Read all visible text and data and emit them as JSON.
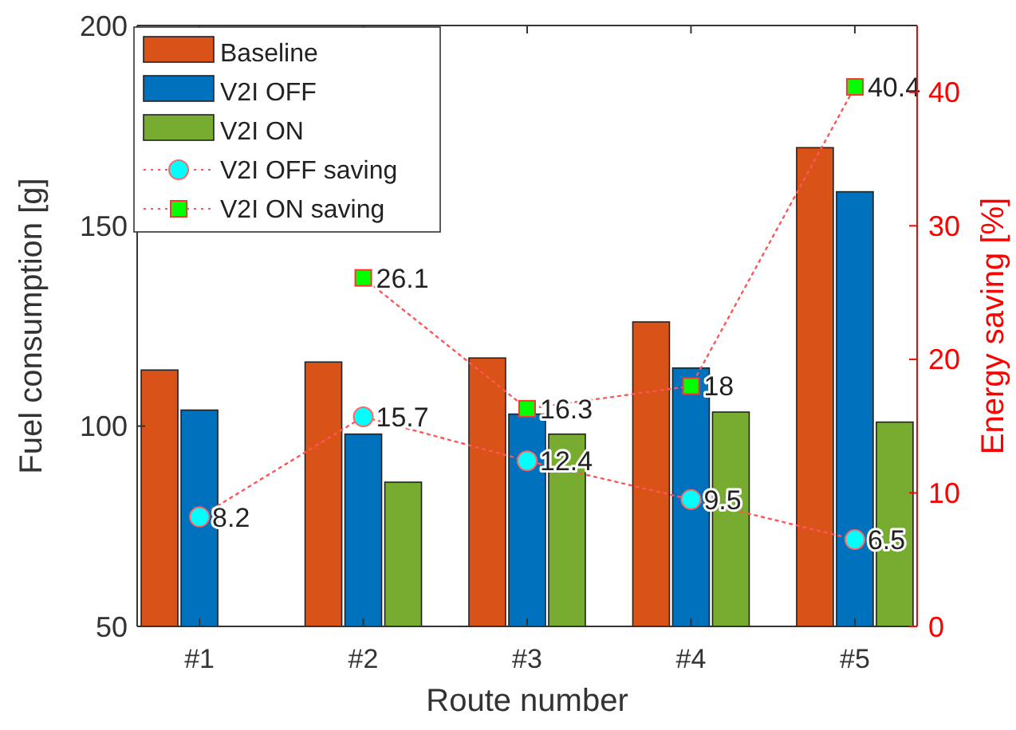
{
  "chart_data": {
    "type": "bar",
    "xlabel": "Route number",
    "ylabel": "Fuel consumption [g]",
    "y2label": "Energy saving [%]",
    "categories": [
      "#1",
      "#2",
      "#3",
      "#4",
      "#5"
    ],
    "series": [
      {
        "name": "Baseline",
        "color": "#d95319",
        "values": [
          114,
          116,
          117,
          126,
          169.5
        ]
      },
      {
        "name": "V2I OFF",
        "color": "#0072bd",
        "values": [
          104,
          98,
          103,
          114.5,
          158.5
        ]
      },
      {
        "name": "V2I ON",
        "color": "#77ac30",
        "values": [
          null,
          86,
          98,
          103.5,
          101
        ]
      },
      {
        "name": "V2I OFF saving",
        "type": "line",
        "axis": "y2",
        "color": "#00ffff",
        "marker": "circle",
        "line_style": "dotted",
        "values": [
          8.2,
          15.7,
          12.4,
          9.5,
          6.5
        ],
        "value_labels": [
          "8.2",
          "15.7",
          "12.4",
          "9.5",
          "6.5"
        ]
      },
      {
        "name": "V2I ON saving",
        "type": "line",
        "axis": "y2",
        "color": "#00ff00",
        "marker": "square",
        "line_style": "dotted",
        "values": [
          null,
          26.1,
          16.3,
          18,
          40.4
        ],
        "value_labels": [
          null,
          "26.1",
          "16.3",
          "18",
          "40.4"
        ]
      }
    ],
    "ylim": [
      50,
      200
    ],
    "yticks": [
      50,
      100,
      150,
      200
    ],
    "y2lim": [
      0,
      45
    ],
    "y2ticks": [
      0,
      10,
      20,
      30,
      40
    ],
    "grid": false,
    "legend": "top left"
  }
}
